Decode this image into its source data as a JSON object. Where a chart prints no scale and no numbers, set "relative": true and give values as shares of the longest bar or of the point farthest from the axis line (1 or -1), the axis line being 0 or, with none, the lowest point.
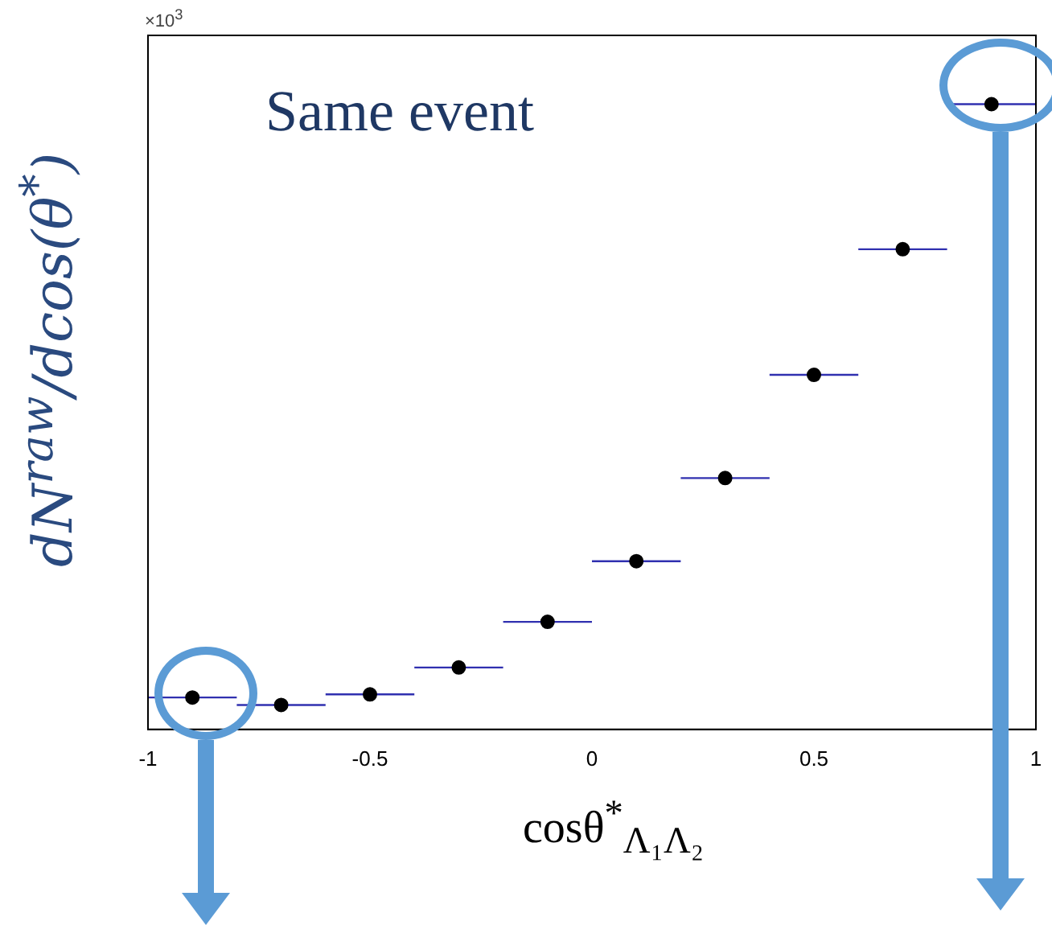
{
  "chart_data": {
    "type": "scatter",
    "relative": true,
    "xlabel": "cosθ$^{*}$$_{Λ₁Λ₂}$",
    "ylabel": "dN$^{raw}$/dcos(θ$^{*}$)",
    "annotations": [
      "×10$^{3}$",
      "Same event"
    ],
    "xlim": [
      -1,
      1
    ],
    "xticks": [
      -1,
      -0.5,
      0,
      0.5,
      1
    ],
    "series": [
      {
        "color": "#000000",
        "x": [
          -0.9,
          -0.7,
          -0.5,
          -0.3,
          -0.1,
          0.1,
          0.3,
          0.5,
          0.7,
          0.9
        ],
        "values": [
          0.051,
          0.039,
          0.056,
          0.099,
          0.172,
          0.269,
          0.402,
          0.567,
          0.768,
          1
        ],
        "xerrors": [
          0.1,
          0.1,
          0.1,
          0.1,
          0.1,
          0.1,
          0.1,
          0.1,
          0.1,
          0.1
        ]
      }
    ],
    "marker": "circle",
    "grid": false,
    "legend": false
  }
}
